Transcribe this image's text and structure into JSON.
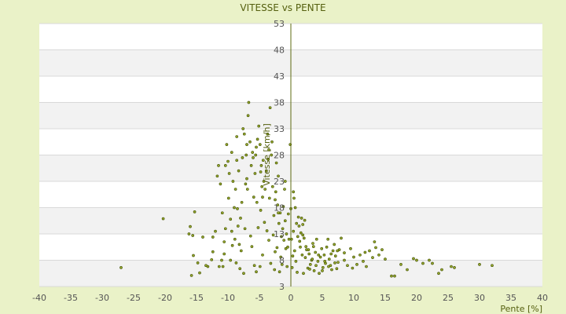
{
  "chart_data": {
    "type": "scatter",
    "title": "VITESSE vs PENTE",
    "xlabel": "Pente [%]",
    "ylabel": "Vitesse [km/h]",
    "xlim": [
      -40,
      40
    ],
    "ylim": [
      3,
      53
    ],
    "x_ticks": [
      -40,
      -35,
      -30,
      -25,
      -20,
      -15,
      -10,
      -5,
      0,
      5,
      10,
      15,
      20,
      25,
      30,
      35,
      40
    ],
    "y_ticks": [
      3,
      8,
      13,
      18,
      23,
      28,
      33,
      38,
      43,
      48,
      53
    ],
    "colors": {
      "background": "#eaf2c8",
      "plot_band_light": "#ffffff",
      "plot_band_dark": "#f2f2f2",
      "gridline": "#d9d9d9",
      "axis": "#5c6b10",
      "point_fill": "#9aab2e",
      "point_stroke": "#4a5a0a"
    },
    "points": [
      [
        -27,
        6.6
      ],
      [
        -20.3,
        15.9
      ],
      [
        -16.2,
        13.0
      ],
      [
        -16.0,
        14.4
      ],
      [
        -15.6,
        12.7
      ],
      [
        -15.3,
        17.2
      ],
      [
        -15.5,
        8.9
      ],
      [
        -14.8,
        7.5
      ],
      [
        -15.8,
        5.1
      ],
      [
        -14.5,
        5.6
      ],
      [
        -14.0,
        12.4
      ],
      [
        -13.2,
        6.8
      ],
      [
        -12.6,
        8.1
      ],
      [
        -12.4,
        12.4
      ],
      [
        -12.0,
        13.5
      ],
      [
        -11.7,
        24.0
      ],
      [
        -11.5,
        26.0
      ],
      [
        -11.2,
        22.5
      ],
      [
        -11.0,
        8.0
      ],
      [
        -10.8,
        6.8
      ],
      [
        -10.6,
        11.5
      ],
      [
        -10.4,
        14.0
      ],
      [
        -10.2,
        30.0
      ],
      [
        -10.0,
        26.8
      ],
      [
        -9.8,
        24.5
      ],
      [
        -9.6,
        15.8
      ],
      [
        -9.4,
        13.5
      ],
      [
        -9.0,
        18.0
      ],
      [
        -8.8,
        21.5
      ],
      [
        -8.6,
        27.0
      ],
      [
        -8.4,
        14.5
      ],
      [
        -8.2,
        11.0
      ],
      [
        -8.0,
        16.0
      ],
      [
        -7.8,
        19.0
      ],
      [
        -7.6,
        33.0
      ],
      [
        -7.4,
        32.0
      ],
      [
        -7.2,
        22.5
      ],
      [
        -7.0,
        23.5
      ],
      [
        -6.8,
        35.5
      ],
      [
        -6.7,
        38.0
      ],
      [
        -6.5,
        30.5
      ],
      [
        -6.3,
        26.0
      ],
      [
        -6.1,
        28.5
      ],
      [
        -5.9,
        20.0
      ],
      [
        -5.7,
        24.5
      ],
      [
        -5.5,
        29.5
      ],
      [
        -5.3,
        31.0
      ],
      [
        -5.1,
        33.5
      ],
      [
        -4.9,
        30.0
      ],
      [
        -4.7,
        26.0
      ],
      [
        -4.5,
        20.0
      ],
      [
        -4.3,
        23.0
      ],
      [
        -4.1,
        21.5
      ],
      [
        -3.9,
        25.0
      ],
      [
        -3.7,
        32.0
      ],
      [
        -3.5,
        29.0
      ],
      [
        -3.3,
        37.0
      ],
      [
        -3.1,
        28.0
      ],
      [
        -2.9,
        22.0
      ],
      [
        -2.7,
        16.5
      ],
      [
        -2.5,
        19.5
      ],
      [
        -2.3,
        26.5
      ],
      [
        -2.1,
        18.5
      ],
      [
        -1.9,
        15.0
      ],
      [
        -1.7,
        17.0
      ],
      [
        -1.5,
        12.5
      ],
      [
        -1.3,
        14.0
      ],
      [
        -1.1,
        11.8
      ],
      [
        -0.9,
        15.5
      ],
      [
        -0.7,
        13.0
      ],
      [
        -0.5,
        10.5
      ],
      [
        -0.3,
        12.0
      ],
      [
        -0.1,
        30.0
      ],
      [
        0.3,
        8.8
      ],
      [
        0.5,
        19.8
      ],
      [
        0.7,
        18.0
      ],
      [
        0.9,
        15.0
      ],
      [
        1.1,
        12.5
      ],
      [
        1.3,
        14.5
      ],
      [
        1.5,
        10.5
      ],
      [
        1.7,
        16.0
      ],
      [
        1.9,
        14.8
      ],
      [
        2.1,
        12.2
      ],
      [
        2.3,
        8.5
      ],
      [
        2.5,
        10.0
      ],
      [
        2.7,
        6.5
      ],
      [
        2.9,
        9.2
      ],
      [
        3.1,
        7.2
      ],
      [
        3.3,
        8.0
      ],
      [
        3.5,
        11.2
      ],
      [
        3.7,
        6.0
      ],
      [
        3.9,
        9.5
      ],
      [
        4.1,
        12.0
      ],
      [
        4.3,
        7.8
      ],
      [
        4.5,
        5.5
      ],
      [
        4.7,
        8.6
      ],
      [
        4.9,
        10.2
      ],
      [
        5.1,
        6.6
      ],
      [
        5.3,
        9.0
      ],
      [
        5.5,
        7.4
      ],
      [
        5.7,
        10.5
      ],
      [
        5.9,
        12.0
      ],
      [
        6.1,
        8.2
      ],
      [
        6.3,
        7.0
      ],
      [
        6.5,
        6.2
      ],
      [
        6.7,
        9.8
      ],
      [
        6.9,
        11.0
      ],
      [
        7.1,
        8.8
      ],
      [
        7.3,
        6.4
      ],
      [
        7.5,
        7.6
      ],
      [
        7.7,
        10.0
      ],
      [
        8.0,
        12.2
      ],
      [
        8.5,
        8.0
      ],
      [
        9.0,
        7.0
      ],
      [
        9.5,
        10.2
      ],
      [
        10.0,
        8.6
      ],
      [
        10.5,
        7.2
      ],
      [
        11.0,
        9.0
      ],
      [
        11.5,
        7.8
      ],
      [
        12.0,
        6.8
      ],
      [
        12.5,
        9.8
      ],
      [
        13.0,
        8.5
      ],
      [
        13.5,
        10.4
      ],
      [
        14.0,
        9.0
      ],
      [
        14.5,
        10.0
      ],
      [
        15.0,
        8.2
      ],
      [
        16.0,
        5.0
      ],
      [
        16.5,
        5.0
      ],
      [
        17.5,
        7.2
      ],
      [
        18.5,
        6.2
      ],
      [
        19.5,
        8.3
      ],
      [
        20.0,
        8.0
      ],
      [
        21.0,
        7.4
      ],
      [
        22.0,
        8.0
      ],
      [
        22.5,
        7.4
      ],
      [
        23.5,
        5.5
      ],
      [
        24.0,
        6.2
      ],
      [
        25.5,
        6.8
      ],
      [
        26.0,
        6.6
      ],
      [
        30.0,
        7.2
      ],
      [
        32.0,
        7.0
      ],
      [
        -7.5,
        5.5
      ],
      [
        -5.8,
        7.0
      ],
      [
        -4.5,
        9.0
      ],
      [
        -3.5,
        11.8
      ],
      [
        -2.5,
        9.6
      ],
      [
        -1.8,
        5.8
      ],
      [
        0.2,
        6.6
      ],
      [
        1.0,
        5.7
      ],
      [
        2.0,
        5.5
      ],
      [
        3.0,
        6.3
      ],
      [
        4.0,
        7.0
      ],
      [
        5.0,
        6.0
      ],
      [
        6.0,
        6.8
      ],
      [
        7.0,
        7.5
      ],
      [
        8.5,
        9.4
      ],
      [
        9.8,
        6.5
      ],
      [
        11.8,
        9.5
      ],
      [
        13.3,
        11.5
      ],
      [
        -9.3,
        10.8
      ],
      [
        -8.7,
        7.5
      ],
      [
        -7.9,
        9.8
      ],
      [
        -6.4,
        12.6
      ],
      [
        -5.2,
        14.2
      ],
      [
        -4.8,
        17.5
      ],
      [
        -3.8,
        13.6
      ],
      [
        -2.8,
        12.8
      ],
      [
        -2.2,
        10.4
      ],
      [
        -1.6,
        8.6
      ],
      [
        -0.8,
        10.2
      ],
      [
        0.1,
        12.0
      ],
      [
        0.6,
        9.8
      ],
      [
        1.4,
        11.6
      ],
      [
        2.4,
        10.6
      ],
      [
        -12.4,
        9.6
      ],
      [
        -11.4,
        6.8
      ],
      [
        -10.6,
        9.2
      ],
      [
        -9.6,
        8.0
      ],
      [
        -8.9,
        12.0
      ],
      [
        -8.1,
        6.4
      ],
      [
        -7.3,
        14.0
      ],
      [
        -6.2,
        10.6
      ],
      [
        -5.5,
        5.8
      ],
      [
        -4.9,
        6.8
      ],
      [
        -4.2,
        15.2
      ],
      [
        -3.2,
        7.4
      ],
      [
        -2.6,
        6.2
      ],
      [
        -1.4,
        7.2
      ],
      [
        -0.6,
        6.8
      ],
      [
        0.8,
        7.8
      ],
      [
        1.8,
        9.0
      ],
      [
        2.8,
        10.0
      ],
      [
        3.4,
        8.2
      ],
      [
        4.4,
        9.0
      ],
      [
        5.4,
        7.8
      ],
      [
        6.4,
        9.2
      ],
      [
        7.4,
        9.8
      ],
      [
        -9.2,
        23.0
      ],
      [
        -8.3,
        25.0
      ],
      [
        -7.1,
        28.0
      ],
      [
        -6.0,
        27.5
      ],
      [
        -4.8,
        24.8
      ],
      [
        -3.6,
        27.2
      ],
      [
        -2.4,
        21.0
      ],
      [
        -1.2,
        18.2
      ],
      [
        -0.4,
        16.8
      ],
      [
        0.4,
        13.5
      ],
      [
        1.2,
        16.2
      ],
      [
        2.2,
        15.6
      ],
      [
        -13.5,
        7.0
      ],
      [
        -10.9,
        17.0
      ],
      [
        -9.9,
        19.8
      ],
      [
        -8.5,
        17.8
      ],
      [
        -7.7,
        27.5
      ],
      [
        -6.9,
        21.5
      ],
      [
        -5.4,
        19.0
      ],
      [
        -4.6,
        22.0
      ],
      [
        -3.4,
        19.8
      ],
      [
        -2.0,
        17.0
      ],
      [
        -1.0,
        21.5
      ],
      [
        0.0,
        17.8
      ],
      [
        1.6,
        13.2
      ],
      [
        -10.4,
        26.0
      ],
      [
        -9.4,
        28.5
      ],
      [
        -8.6,
        31.5
      ],
      [
        -7.0,
        30.0
      ],
      [
        -5.6,
        28.0
      ],
      [
        -4.4,
        27.0
      ],
      [
        -3.0,
        30.5
      ],
      [
        -2.0,
        24.0
      ],
      [
        -0.9,
        23.0
      ],
      [
        0.4,
        21.0
      ],
      [
        1.9,
        12.8
      ],
      [
        3.6,
        10.6
      ]
    ]
  }
}
